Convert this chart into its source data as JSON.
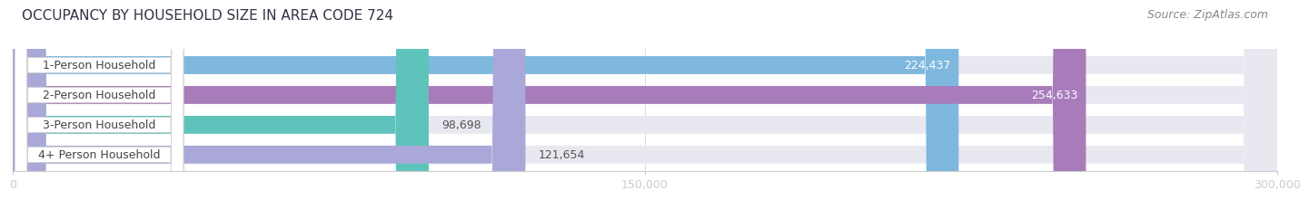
{
  "title": "OCCUPANCY BY HOUSEHOLD SIZE IN AREA CODE 724",
  "source": "Source: ZipAtlas.com",
  "categories": [
    "1-Person Household",
    "2-Person Household",
    "3-Person Household",
    "4+ Person Household"
  ],
  "values": [
    224437,
    254633,
    98698,
    121654
  ],
  "bar_colors": [
    "#7eb8de",
    "#a87cba",
    "#5ec4bb",
    "#a9a8d8"
  ],
  "background_color": "#ffffff",
  "bar_background_color": "#e8e8f0",
  "xlim": [
    0,
    300000
  ],
  "xticks": [
    0,
    150000,
    300000
  ],
  "xtick_labels": [
    "0",
    "150,000",
    "300,000"
  ],
  "title_fontsize": 11,
  "source_fontsize": 9,
  "tick_fontsize": 9,
  "bar_label_fontsize": 9,
  "cat_label_fontsize": 9
}
